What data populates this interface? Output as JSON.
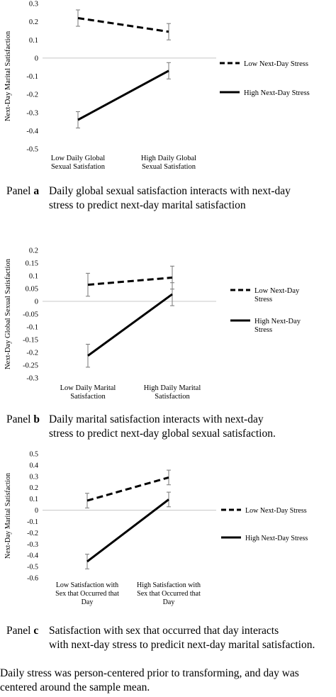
{
  "chart_data": [
    {
      "type": "line",
      "panel_label": "Panel",
      "panel_letter": "a",
      "caption_line1": "Daily global sexual satisfaction interacts with next-day",
      "caption_line2": "stress to predict next-day marital satisfaction",
      "ylabel": "Next-Day Marital Satisfaction",
      "ylim": [
        -0.5,
        0.3
      ],
      "yticks": [
        0.3,
        0.2,
        0.1,
        0,
        -0.1,
        -0.2,
        -0.3,
        -0.4,
        -0.5
      ],
      "yticklabels": [
        "0.3",
        "0.2",
        "0.1",
        "0",
        "-0.1",
        "-0.2",
        "-0.3",
        "-0.4",
        "-0.5"
      ],
      "categories": [
        [
          "Low Daily Global",
          "Sexual Satisfation"
        ],
        [
          "High Daily Global",
          "Sexual Satisfation"
        ]
      ],
      "series": [
        {
          "name": "Low Next-Day Stress",
          "style": "dashed",
          "values": [
            0.22,
            0.145
          ],
          "err": [
            0.045,
            0.045
          ]
        },
        {
          "name": "High Next-Day Stress",
          "style": "solid",
          "values": [
            -0.34,
            -0.07
          ],
          "err": [
            0.045,
            0.045
          ]
        }
      ],
      "legend_lines": [
        [
          "Low Next-Day Stress"
        ],
        [
          "High Next-Day Stress"
        ]
      ]
    },
    {
      "type": "line",
      "panel_label": "Panel",
      "panel_letter": "b",
      "caption_line1": "Daily marital satisfaction interacts with next-day",
      "caption_line2": "stress to predict next-day global sexual satisfaction.",
      "ylabel": "Next-Day Global Sexual Satisfaction",
      "ylim": [
        -0.3,
        0.2
      ],
      "yticks": [
        0.2,
        0.15,
        0.1,
        0.05,
        0,
        -0.05,
        -0.1,
        -0.15,
        -0.2,
        -0.25,
        -0.3
      ],
      "yticklabels": [
        "0.2",
        "0.15",
        "0.1",
        "0.05",
        "0",
        "-0.05",
        "-0.1",
        "-0.15",
        "-0.2",
        "-0.25",
        "-0.3"
      ],
      "categories": [
        [
          "Low Daily Marital",
          "Satisfaction"
        ],
        [
          "High Daily Marital",
          "Satisfaction"
        ]
      ],
      "series": [
        {
          "name": "Low Next-Day Stress",
          "style": "dashed",
          "values": [
            0.065,
            0.093
          ],
          "err": [
            0.045,
            0.045
          ]
        },
        {
          "name": "High Next-Day Stress",
          "style": "solid",
          "values": [
            -0.213,
            0.028
          ],
          "err": [
            0.045,
            0.045
          ]
        }
      ],
      "legend_lines": [
        [
          "Low Next-Day",
          "Stress"
        ],
        [
          "High Next-Day",
          "Stress"
        ]
      ]
    },
    {
      "type": "line",
      "panel_label": "Panel",
      "panel_letter": "c",
      "caption_line1": "Satisfaction with sex that occurred that day interacts",
      "caption_line2": "with next-day stress to predicit next-day marital satisfaction.",
      "ylabel": "Next-Day Marital Satisfaction",
      "ylim": [
        -0.6,
        0.5
      ],
      "yticks": [
        0.5,
        0.4,
        0.3,
        0.2,
        0.1,
        0,
        -0.1,
        -0.2,
        -0.3,
        -0.4,
        -0.5,
        -0.6
      ],
      "yticklabels": [
        "0.5",
        "0.4",
        "0.3",
        "0.2",
        "0.1",
        "0",
        "-0.1",
        "-0.2",
        "-0.3",
        "-0.4",
        "-0.5",
        "-0.6"
      ],
      "categories": [
        [
          "Low Satisfaction with",
          "Sex that Occurred that",
          "Day"
        ],
        [
          "High Satisfaction with",
          "Sex that Occurred that",
          "Day"
        ]
      ],
      "series": [
        {
          "name": "Low Next-Day Stress",
          "style": "dashed",
          "values": [
            0.085,
            0.29
          ],
          "err": [
            0.065,
            0.065
          ]
        },
        {
          "name": "High Next-Day Stress",
          "style": "solid",
          "values": [
            -0.455,
            0.095
          ],
          "err": [
            0.065,
            0.065
          ]
        }
      ],
      "legend_lines": [
        [
          "Low Next-Day Stress"
        ],
        [
          "High Next-Day Stress"
        ]
      ]
    }
  ],
  "note": "Daily stress was person-centered prior to transforming, and day was centered around the sample mean."
}
